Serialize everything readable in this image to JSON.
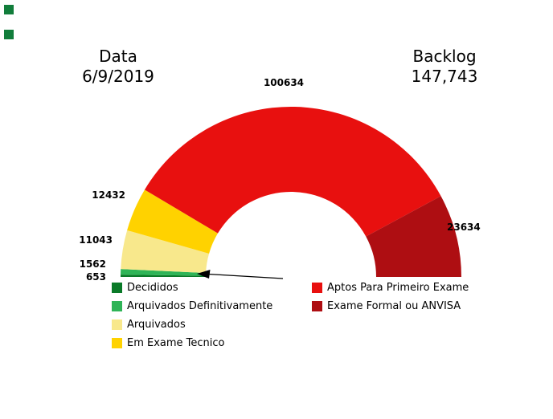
{
  "header": {
    "date_label": "Data",
    "date_value": "6/9/2019",
    "backlog_label": "Backlog",
    "backlog_value": "147,743"
  },
  "chart_data": {
    "type": "pie",
    "variant": "half-donut-gauge",
    "start_angle_deg": 180,
    "end_angle_deg": 0,
    "legend_position": "bottom",
    "segments": [
      {
        "id": "decididos",
        "label": "Decididos",
        "value": 653,
        "color": "#0a7a28"
      },
      {
        "id": "arquivados-definitivamente",
        "label": "Arquivados Definitivamente",
        "value": 1562,
        "color": "#2fb457"
      },
      {
        "id": "arquivados",
        "label": "Arquivados",
        "value": 11043,
        "color": "#f8e88c"
      },
      {
        "id": "em-exame-tecnico",
        "label": "Em Exame Tecnico",
        "value": 12432,
        "color": "#ffd200"
      },
      {
        "id": "aptos-para-primeiro-exame",
        "label": "Aptos Para Primeiro Exame",
        "value": 100634,
        "color": "#e8100f"
      },
      {
        "id": "exame-formal-ou-anvisa",
        "label": "Exame Formal ou ANVISA",
        "value": 23634,
        "color": "#ae0e12"
      }
    ]
  },
  "decorations": {
    "corner_marker_color": "#117d3b"
  }
}
